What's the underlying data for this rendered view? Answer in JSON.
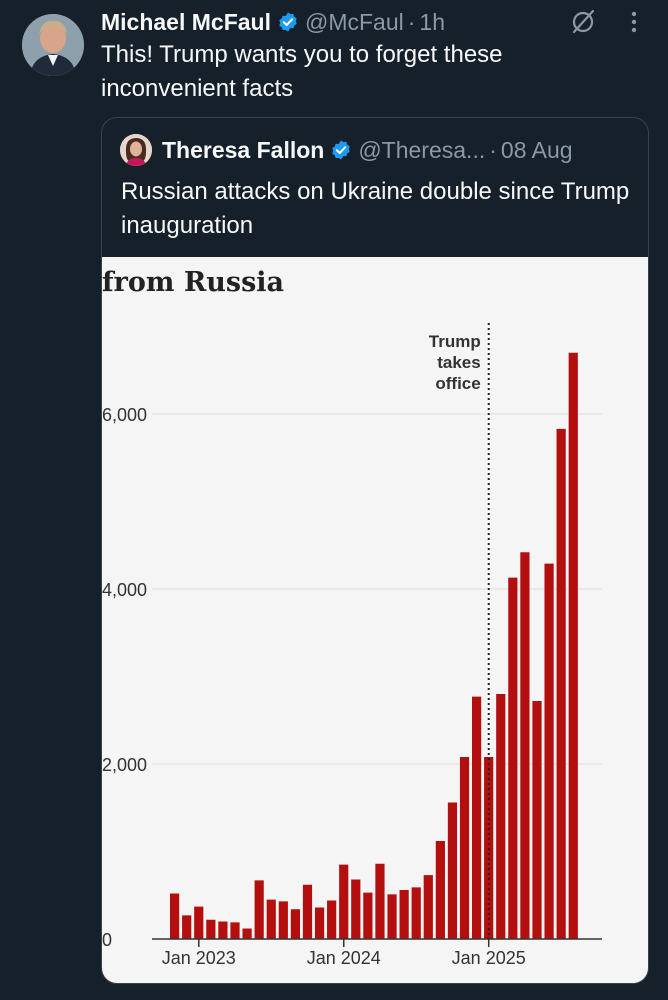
{
  "tweet": {
    "author_name": "Michael McFaul",
    "handle": "@McFaul",
    "separator": "·",
    "time": "1h",
    "text": "This! Trump wants you to forget these inconvenient facts",
    "avatar_icon": "profile-photo",
    "grok_icon": "slashed-circle-icon",
    "more_icon": "vertical-dots-icon",
    "verified_color": "#1d9bf0"
  },
  "quote": {
    "author_name": "Theresa Fallon",
    "handle": "@Theresa...",
    "separator": "·",
    "date": "08 Aug",
    "text": "Russian attacks on Ukraine double since Trump inauguration",
    "avatar_icon": "profile-photo"
  },
  "chart_data": {
    "type": "bar",
    "title": "from Russia",
    "bar_color": "#b40f0f",
    "ylim": [
      0,
      7000
    ],
    "yticks": [
      {
        "value": 0,
        "label": "0"
      },
      {
        "value": 2000,
        "label": "2,000"
      },
      {
        "value": 4000,
        "label": "4,000"
      },
      {
        "value": 6000,
        "label": "6,000"
      }
    ],
    "xticks": [
      {
        "index": 2.5,
        "label": "Jan 2023"
      },
      {
        "index": 14.5,
        "label": "Jan 2024"
      },
      {
        "index": 26.5,
        "label": "Jan 2025"
      }
    ],
    "annotation": {
      "index": 26.5,
      "lines": [
        "Trump",
        "takes",
        "office"
      ]
    },
    "values": [
      520,
      270,
      370,
      220,
      200,
      190,
      120,
      670,
      450,
      430,
      340,
      620,
      360,
      440,
      850,
      680,
      530,
      860,
      510,
      560,
      590,
      730,
      1120,
      1560,
      2080,
      2770,
      2080,
      2800,
      4130,
      4420,
      2720,
      4290,
      5830,
      6700
    ]
  }
}
